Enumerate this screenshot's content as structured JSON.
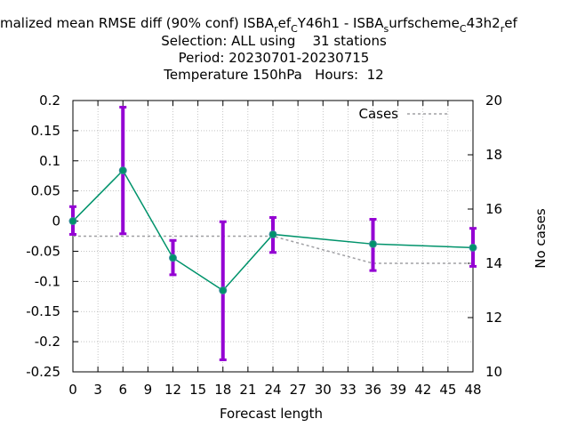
{
  "chart_data": {
    "type": "line",
    "title_lines": [
      "malized mean RMSE diff (90% conf) ISBA",
      "Selection: ALL using    31 stations",
      "Period: 20230701-20230715",
      "Temperature 150hPa   Hours:  12"
    ],
    "title_parts": {
      "p1": "malized mean RMSE diff (90% conf) ISBA",
      "sub1": "r",
      "p2": "ef",
      "sub2": "C",
      "p3": "Y46h1 - ISBA",
      "sub3": "s",
      "p4": "urfscheme",
      "sub4": "C",
      "p5": "43h2",
      "sub5": "r",
      "p6": "ef"
    },
    "xlabel": "Forecast length",
    "ylabel": "",
    "y2label": "No cases",
    "xlim": [
      0,
      48
    ],
    "ylim": [
      -0.25,
      0.2
    ],
    "y2lim": [
      10,
      20
    ],
    "grid": true,
    "legend_position": "top-right",
    "x_ticks": [
      "0",
      "3",
      "6",
      "9",
      "12",
      "15",
      "18",
      "21",
      "24",
      "27",
      "30",
      "33",
      "36",
      "39",
      "42",
      "45",
      "48"
    ],
    "y_ticks": [
      "0.2",
      "0.15",
      "0.1",
      "0.05",
      "0",
      "-0.05",
      "-0.1",
      "-0.15",
      "-0.2",
      "-0.25"
    ],
    "y2_ticks": [
      "20",
      "18",
      "16",
      "14",
      "12",
      "10"
    ],
    "series": [
      {
        "name": "",
        "color": "#00936b",
        "errorbar_color": "#9400d3",
        "x": [
          0,
          6,
          12,
          18,
          24,
          36,
          48
        ],
        "values": [
          0.0,
          0.084,
          -0.061,
          -0.115,
          -0.022,
          -0.038,
          -0.044
        ],
        "err_low": [
          -0.022,
          -0.021,
          -0.089,
          -0.23,
          -0.052,
          -0.082,
          -0.075
        ],
        "err_high": [
          0.024,
          0.189,
          -0.032,
          -0.001,
          0.006,
          0.003,
          -0.012
        ]
      },
      {
        "name": "Cases",
        "color": "#a0a0a4",
        "axis": "y2",
        "x": [
          0,
          6,
          12,
          18,
          24,
          36,
          48
        ],
        "values": [
          15,
          15,
          15,
          15,
          15,
          14,
          14
        ]
      }
    ]
  }
}
